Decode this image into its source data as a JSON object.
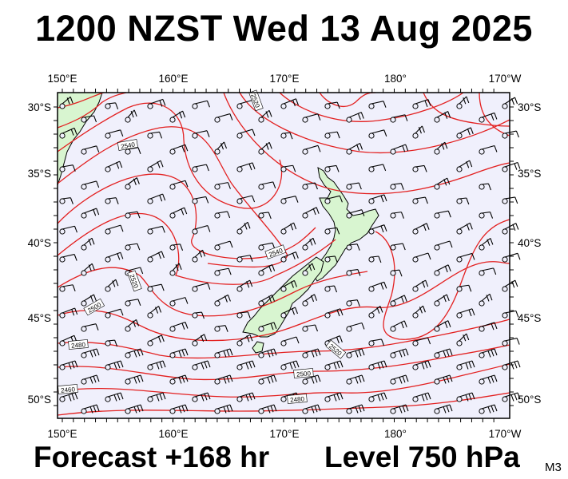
{
  "title": "1200 NZST Wed 13 Aug 2025",
  "footer": {
    "forecast": "Forecast +168 hr",
    "level": "Level 750 hPa",
    "model": "M3"
  },
  "map": {
    "lon_labels": [
      "150°E",
      "160°E",
      "170°E",
      "180°",
      "170°W"
    ],
    "lat_labels": [
      "30°S",
      "35°S",
      "40°S",
      "45°S",
      "50°S"
    ],
    "contour_labels": [
      "2520",
      "2540",
      "2540",
      "2520",
      "2500",
      "2480",
      "2460",
      "2520",
      "2500",
      "2480"
    ],
    "colors": {
      "ocean": "#f0f0fc",
      "land": "#d8f5d0",
      "contour": "#e32020",
      "barb": "#000000",
      "frame": "#000000"
    }
  }
}
